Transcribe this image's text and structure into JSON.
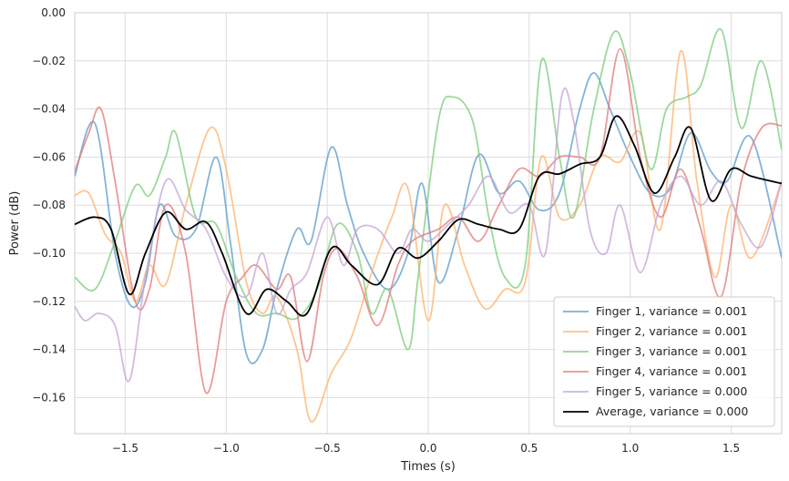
{
  "chart_data": {
    "type": "line",
    "title": "",
    "xlabel": "Times (s)",
    "ylabel": "Power (dB)",
    "xlim": [
      -1.75,
      1.75
    ],
    "ylim": [
      -0.175,
      0.0
    ],
    "xticks": [
      -1.5,
      -1.0,
      -0.5,
      0.0,
      0.5,
      1.0,
      1.5
    ],
    "xtick_labels": [
      "−1.5",
      "−1.0",
      "−0.5",
      "0.0",
      "0.5",
      "1.0",
      "1.5"
    ],
    "yticks": [
      0.0,
      -0.02,
      -0.04,
      -0.06,
      -0.08,
      -0.1,
      -0.12,
      -0.14,
      -0.16
    ],
    "ytick_labels": [
      "0.00",
      "−0.02",
      "−0.04",
      "−0.06",
      "−0.08",
      "−0.10",
      "−0.12",
      "−0.14",
      "−0.16"
    ],
    "grid": true,
    "legend_position": "lower-right",
    "series": [
      {
        "name": "Finger 1, variance = 0.001",
        "color": "#5b9bc9",
        "x": [
          -1.75,
          -1.65,
          -1.55,
          -1.47,
          -1.4,
          -1.33,
          -1.25,
          -1.15,
          -1.05,
          -0.98,
          -0.9,
          -0.82,
          -0.75,
          -0.65,
          -0.58,
          -0.48,
          -0.4,
          -0.32,
          -0.2,
          -0.1,
          -0.03,
          0.05,
          0.15,
          0.25,
          0.35,
          0.45,
          0.55,
          0.65,
          0.75,
          0.82,
          0.9,
          1.0,
          1.1,
          1.2,
          1.3,
          1.4,
          1.48,
          1.6,
          1.75
        ],
        "y": [
          -0.068,
          -0.046,
          -0.1,
          -0.122,
          -0.112,
          -0.08,
          -0.093,
          -0.09,
          -0.06,
          -0.095,
          -0.142,
          -0.14,
          -0.115,
          -0.09,
          -0.095,
          -0.056,
          -0.08,
          -0.1,
          -0.115,
          -0.1,
          -0.071,
          -0.112,
          -0.09,
          -0.059,
          -0.075,
          -0.07,
          -0.082,
          -0.075,
          -0.04,
          -0.025,
          -0.04,
          -0.06,
          -0.075,
          -0.073,
          -0.05,
          -0.066,
          -0.07,
          -0.052,
          -0.102
        ]
      },
      {
        "name": "Finger 2, variance = 0.001",
        "color": "#ffb26e",
        "x": [
          -1.75,
          -1.68,
          -1.6,
          -1.52,
          -1.45,
          -1.38,
          -1.3,
          -1.2,
          -1.08,
          -1.0,
          -0.9,
          -0.82,
          -0.75,
          -0.65,
          -0.58,
          -0.48,
          -0.38,
          -0.28,
          -0.18,
          -0.1,
          0.0,
          0.08,
          0.18,
          0.28,
          0.38,
          0.48,
          0.56,
          0.65,
          0.75,
          0.85,
          0.95,
          1.05,
          1.15,
          1.25,
          1.33,
          1.42,
          1.5,
          1.6,
          1.75
        ],
        "y": [
          -0.076,
          -0.075,
          -0.092,
          -0.1,
          -0.12,
          -0.105,
          -0.113,
          -0.08,
          -0.048,
          -0.065,
          -0.112,
          -0.125,
          -0.118,
          -0.14,
          -0.17,
          -0.15,
          -0.135,
          -0.108,
          -0.085,
          -0.073,
          -0.128,
          -0.08,
          -0.105,
          -0.123,
          -0.115,
          -0.112,
          -0.06,
          -0.085,
          -0.08,
          -0.06,
          -0.062,
          -0.05,
          -0.09,
          -0.016,
          -0.07,
          -0.11,
          -0.08,
          -0.102,
          -0.07
        ]
      },
      {
        "name": "Finger 3, variance = 0.001",
        "color": "#7ec97e",
        "x": [
          -1.75,
          -1.65,
          -1.55,
          -1.45,
          -1.38,
          -1.3,
          -1.25,
          -1.15,
          -1.05,
          -0.95,
          -0.85,
          -0.75,
          -0.65,
          -0.55,
          -0.45,
          -0.35,
          -0.28,
          -0.2,
          -0.1,
          -0.05,
          0.05,
          0.12,
          0.22,
          0.3,
          0.38,
          0.48,
          0.56,
          0.65,
          0.72,
          0.82,
          0.92,
          1.0,
          1.1,
          1.18,
          1.28,
          1.35,
          1.45,
          1.55,
          1.65,
          1.75
        ],
        "y": [
          -0.11,
          -0.115,
          -0.095,
          -0.072,
          -0.076,
          -0.06,
          -0.05,
          -0.085,
          -0.088,
          -0.11,
          -0.125,
          -0.125,
          -0.127,
          -0.115,
          -0.088,
          -0.1,
          -0.125,
          -0.115,
          -0.14,
          -0.11,
          -0.045,
          -0.035,
          -0.045,
          -0.085,
          -0.11,
          -0.105,
          -0.02,
          -0.06,
          -0.085,
          -0.04,
          -0.008,
          -0.025,
          -0.065,
          -0.04,
          -0.035,
          -0.03,
          -0.007,
          -0.048,
          -0.02,
          -0.057
        ]
      },
      {
        "name": "Finger 4, variance = 0.001",
        "color": "#e07a7a",
        "x": [
          -1.75,
          -1.68,
          -1.62,
          -1.55,
          -1.45,
          -1.38,
          -1.3,
          -1.2,
          -1.1,
          -1.0,
          -0.92,
          -0.85,
          -0.75,
          -0.68,
          -0.6,
          -0.52,
          -0.45,
          -0.35,
          -0.25,
          -0.15,
          -0.08,
          0.05,
          0.15,
          0.25,
          0.35,
          0.45,
          0.55,
          0.65,
          0.75,
          0.85,
          0.95,
          1.05,
          1.15,
          1.25,
          1.35,
          1.45,
          1.55,
          1.65,
          1.75
        ],
        "y": [
          -0.066,
          -0.05,
          -0.04,
          -0.07,
          -0.12,
          -0.115,
          -0.08,
          -0.1,
          -0.158,
          -0.12,
          -0.11,
          -0.105,
          -0.115,
          -0.11,
          -0.145,
          -0.11,
          -0.098,
          -0.11,
          -0.13,
          -0.105,
          -0.095,
          -0.09,
          -0.085,
          -0.095,
          -0.08,
          -0.065,
          -0.068,
          -0.06,
          -0.06,
          -0.06,
          -0.015,
          -0.06,
          -0.085,
          -0.065,
          -0.09,
          -0.118,
          -0.07,
          -0.048,
          -0.047
        ]
      },
      {
        "name": "Finger 5, variance = 0.000",
        "color": "#c3a4d4",
        "x": [
          -1.75,
          -1.7,
          -1.63,
          -1.55,
          -1.48,
          -1.4,
          -1.3,
          -1.2,
          -1.1,
          -1.0,
          -0.9,
          -0.82,
          -0.75,
          -0.68,
          -0.6,
          -0.5,
          -0.42,
          -0.35,
          -0.25,
          -0.15,
          -0.08,
          0.0,
          0.1,
          0.2,
          0.3,
          0.4,
          0.5,
          0.58,
          0.66,
          0.72,
          0.8,
          0.88,
          0.95,
          1.05,
          1.15,
          1.25,
          1.35,
          1.45,
          1.55,
          1.65,
          1.75
        ],
        "y": [
          -0.122,
          -0.128,
          -0.125,
          -0.13,
          -0.153,
          -0.11,
          -0.07,
          -0.082,
          -0.09,
          -0.11,
          -0.118,
          -0.1,
          -0.125,
          -0.115,
          -0.108,
          -0.085,
          -0.105,
          -0.09,
          -0.09,
          -0.1,
          -0.09,
          -0.095,
          -0.088,
          -0.08,
          -0.068,
          -0.083,
          -0.08,
          -0.1,
          -0.035,
          -0.045,
          -0.09,
          -0.1,
          -0.08,
          -0.108,
          -0.08,
          -0.068,
          -0.08,
          -0.07,
          -0.088,
          -0.097,
          -0.07
        ]
      },
      {
        "name": "Average, variance = 0.000",
        "color": "#000000",
        "x": [
          -1.75,
          -1.65,
          -1.57,
          -1.48,
          -1.4,
          -1.3,
          -1.2,
          -1.1,
          -1.02,
          -0.9,
          -0.8,
          -0.7,
          -0.6,
          -0.48,
          -0.38,
          -0.25,
          -0.15,
          -0.05,
          0.05,
          0.15,
          0.25,
          0.35,
          0.45,
          0.55,
          0.65,
          0.75,
          0.85,
          0.93,
          1.02,
          1.12,
          1.22,
          1.3,
          1.4,
          1.5,
          1.6,
          1.75
        ],
        "y": [
          -0.088,
          -0.085,
          -0.09,
          -0.117,
          -0.1,
          -0.083,
          -0.09,
          -0.087,
          -0.1,
          -0.125,
          -0.115,
          -0.12,
          -0.125,
          -0.098,
          -0.105,
          -0.113,
          -0.098,
          -0.102,
          -0.095,
          -0.086,
          -0.088,
          -0.09,
          -0.09,
          -0.068,
          -0.067,
          -0.063,
          -0.06,
          -0.043,
          -0.055,
          -0.075,
          -0.06,
          -0.048,
          -0.078,
          -0.065,
          -0.068,
          -0.071
        ]
      }
    ]
  }
}
